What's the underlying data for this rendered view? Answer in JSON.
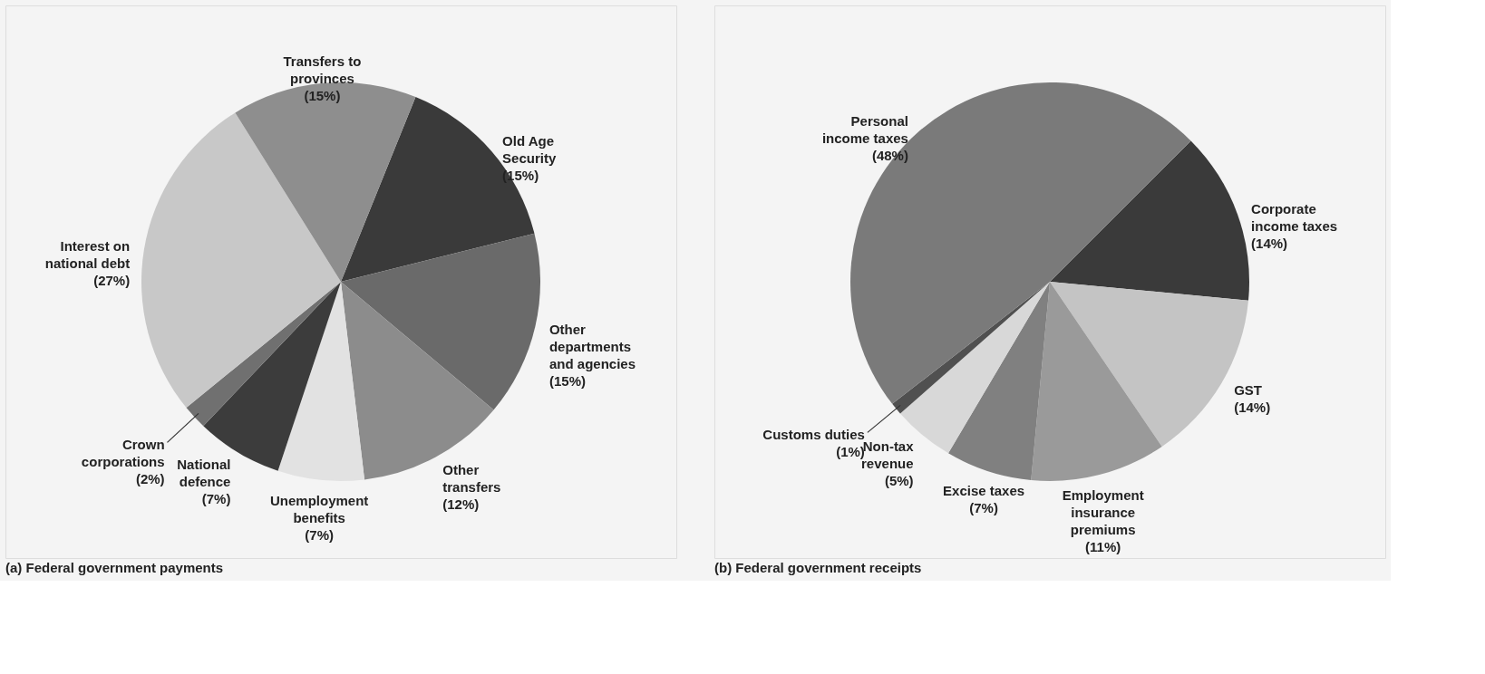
{
  "chart_data": [
    {
      "type": "pie",
      "title": "(a) Federal government payments",
      "categories": [
        "Old Age Security",
        "Other departments and agencies",
        "Other transfers",
        "Unemployment benefits",
        "National defence",
        "Crown corporations",
        "Interest on national debt",
        "Transfers to provinces"
      ],
      "values": [
        15,
        15,
        12,
        7,
        7,
        2,
        27,
        15
      ],
      "value_labels": [
        "(15%)",
        "(15%)",
        "(12%)",
        "(7%)",
        "(7%)",
        "(2%)",
        "(27%)",
        "(15%)"
      ],
      "colors": [
        "#3a3a3a",
        "#6a6a6a",
        "#8c8c8c",
        "#e2e2e2",
        "#3c3c3c",
        "#707070",
        "#c8c8c8",
        "#8e8e8e"
      ]
    },
    {
      "type": "pie",
      "title": "(b) Federal government receipts",
      "categories": [
        "Corporate income taxes",
        "GST",
        "Employment insurance premiums",
        "Excise taxes",
        "Non-tax revenue",
        "Customs duties",
        "Personal income taxes"
      ],
      "values": [
        14,
        14,
        11,
        7,
        5,
        1,
        48
      ],
      "value_labels": [
        "(14%)",
        "(14%)",
        "(11%)",
        "(7%)",
        "(5%)",
        "(1%)",
        "(48%)"
      ],
      "colors": [
        "#3a3a3a",
        "#c4c4c4",
        "#9a9a9a",
        "#808080",
        "#d8d8d8",
        "#505050",
        "#7a7a7a"
      ]
    }
  ]
}
